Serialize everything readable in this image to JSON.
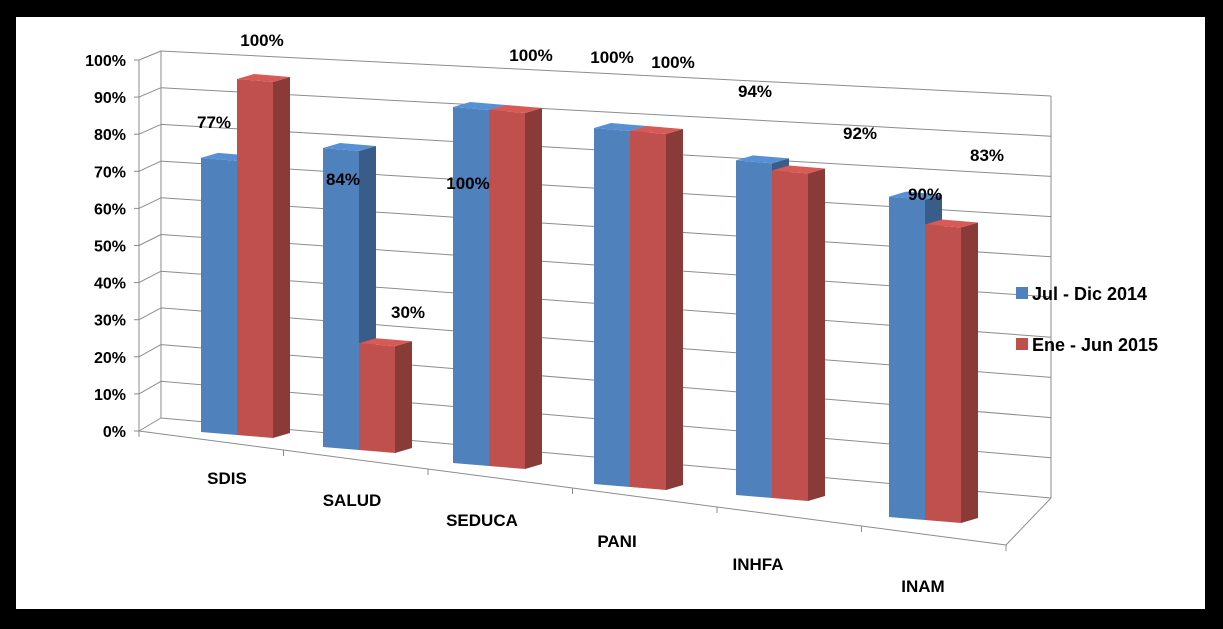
{
  "chart_data": {
    "type": "bar",
    "variant": "3d-clustered-column",
    "categories": [
      "SDIS",
      "SALUD",
      "SEDUCA",
      "PANI",
      "INHFA",
      "INAM"
    ],
    "series": [
      {
        "name": "Jul - Dic 2014",
        "color": "#4F81BD",
        "values": [
          77,
          84,
          100,
          100,
          94,
          90
        ]
      },
      {
        "name": "Ene - Jun 2015",
        "color": "#C0504D",
        "values": [
          100,
          30,
          100,
          100,
          92,
          83
        ]
      }
    ],
    "data_labels": {
      "series0": [
        "77%",
        "84%",
        "100%",
        "100%",
        "94%",
        "90%"
      ],
      "series1": [
        "100%",
        "30%",
        "100%",
        "100%",
        "92%",
        "83%"
      ]
    },
    "y_ticks": [
      "0%",
      "10%",
      "20%",
      "30%",
      "40%",
      "50%",
      "60%",
      "70%",
      "80%",
      "90%",
      "100%"
    ],
    "ylim": [
      0,
      100
    ],
    "grid": true,
    "legend_position": "right"
  }
}
